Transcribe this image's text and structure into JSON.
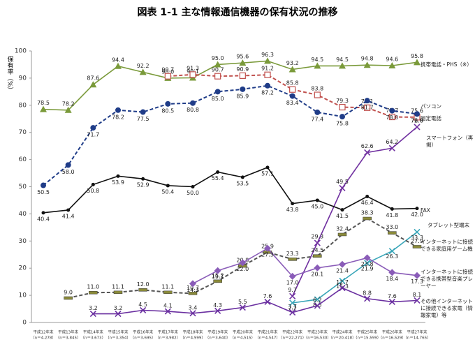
{
  "chart_data": {
    "type": "line",
    "title": "図表 1-1 主な情報通信機器の保有状況の推移",
    "y_label": "保有率（%）",
    "categories": [
      "平成12年末",
      "平成13年末",
      "平成14年末",
      "平成15年末",
      "平成16年末",
      "平成17年末",
      "平成18年末",
      "平成19年末",
      "平成20年末",
      "平成21年末",
      "平成22年末",
      "平成23年末",
      "平成24年末",
      "平成25年末",
      "平成26年末",
      "平成27年末"
    ],
    "sample_sizes": [
      "（n＝4,278）",
      "（n＝3,845）",
      "（n＝3,673）",
      "（n＝3,354）",
      "（n＝3,695）",
      "（n＝3,982）",
      "（n＝4,999）",
      "（n＝3,640）",
      "（n＝4,515）",
      "（n＝4,547）",
      "（n＝22,271）",
      "（n＝16,530）",
      "（n＝20,418）",
      "（n＝15,599）",
      "（n＝16,529）",
      "（n＝14,765）"
    ],
    "ylim": [
      0,
      100
    ],
    "yticks": [
      0,
      10,
      20,
      30,
      40,
      50,
      60,
      70,
      80,
      90,
      100
    ],
    "series": [
      {
        "name": "携帯電話・PHS（※）",
        "color": "#7a9a3a",
        "marker": "triangle",
        "dashed": false,
        "values": [
          78.5,
          78.2,
          87.6,
          94.4,
          92.2,
          90.0,
          90.1,
          95.0,
          95.6,
          96.3,
          93.2,
          94.5,
          94.5,
          94.8,
          94.6,
          95.8
        ],
        "value_labels": [
          "78.5",
          "78.2",
          "87.6",
          "94.4",
          "92.2",
          "90.0",
          "90.1",
          "95.0",
          "95.6",
          "96.3",
          "93.2",
          "94.5",
          "94.5",
          "94.8",
          "94.6",
          "95.8"
        ]
      },
      {
        "name": "固定電話",
        "color": "#c0504d",
        "marker": "square",
        "dashed": true,
        "values": [
          null,
          null,
          null,
          null,
          null,
          90.7,
          91.3,
          90.7,
          90.9,
          91.2,
          85.8,
          83.8,
          79.3,
          79.1,
          75.7,
          75.6
        ],
        "value_labels": [
          null,
          null,
          null,
          null,
          null,
          "90.7",
          "91.3",
          "90.7",
          "90.9",
          "91.2",
          "85.8",
          "83.8",
          "79.3",
          "79.1",
          "75.7",
          "75.6"
        ]
      },
      {
        "name": "パソコン",
        "color": "#1f3c88",
        "marker": "circle",
        "dashed": true,
        "values": [
          50.5,
          58.0,
          71.7,
          78.2,
          77.5,
          80.5,
          80.8,
          85.0,
          85.9,
          87.2,
          83.4,
          77.4,
          75.8,
          81.7,
          78.0,
          76.8
        ],
        "value_labels": [
          "50.5",
          "58.0",
          "71.7",
          "78.2",
          "77.5",
          "80.5",
          "80.8",
          "85.0",
          "85.9",
          "87.2",
          "83.4",
          "77.4",
          "75.8",
          "81.7",
          "78.0",
          "76.8"
        ]
      },
      {
        "name": "スマートフォン（再掲）",
        "color": "#7030a0",
        "marker": "cross",
        "dashed": false,
        "values": [
          null,
          null,
          null,
          null,
          null,
          null,
          null,
          null,
          null,
          null,
          9.7,
          29.3,
          49.5,
          62.6,
          64.2,
          72.0
        ],
        "value_labels": [
          null,
          null,
          null,
          null,
          null,
          null,
          null,
          null,
          null,
          null,
          "9.7",
          "29.3",
          "49.5",
          "62.6",
          "64.2",
          "72.0"
        ]
      },
      {
        "name": "FAX",
        "color": "#111111",
        "marker": "dot",
        "dashed": false,
        "values": [
          40.4,
          41.4,
          50.8,
          53.9,
          52.9,
          50.4,
          50.0,
          55.4,
          53.5,
          57.1,
          43.8,
          45.0,
          41.5,
          46.4,
          41.8,
          42.0
        ],
        "value_labels": [
          "40.4",
          "41.4",
          "50.8",
          "53.9",
          "52.9",
          "50.4",
          "50.0",
          "55.4",
          "53.5",
          "57.1",
          "43.8",
          "45.0",
          "41.5",
          "46.4",
          "41.8",
          "42.0"
        ]
      },
      {
        "name": "タブレット型端末",
        "color": "#3aa6b9",
        "marker": "cross",
        "dashed": false,
        "values": [
          null,
          null,
          null,
          null,
          null,
          null,
          null,
          null,
          null,
          null,
          7.2,
          8.5,
          15.3,
          21.9,
          26.3,
          33.3
        ],
        "value_labels": [
          null,
          null,
          null,
          null,
          null,
          null,
          null,
          null,
          null,
          null,
          "7.2",
          "8.5",
          "15.3",
          "21.9",
          "26.3",
          "33.3"
        ]
      },
      {
        "name": "インターネットに接続できる家庭用ゲーム機",
        "color": "#555555",
        "marker": "bar",
        "dashed": true,
        "values": [
          null,
          9.0,
          11.0,
          11.1,
          12.0,
          11.1,
          10.7,
          15.2,
          20.8,
          25.9,
          23.3,
          24.5,
          32.4,
          38.3,
          33.0,
          27.9
        ],
        "value_labels": [
          null,
          "9.0",
          "11.0",
          "11.1",
          "12.0",
          "11.1",
          "10.7",
          "15.2",
          "20.8",
          "25.9",
          "23.3",
          "24.5",
          "32.4",
          "38.3",
          "33.0",
          "27.9"
        ]
      },
      {
        "name": "インターネットに接続できる携帯型音楽プレーヤー",
        "color": "#8a5cb8",
        "marker": "diamond",
        "dashed": false,
        "values": [
          null,
          null,
          null,
          null,
          null,
          null,
          14.3,
          19.1,
          22.0,
          27.3,
          17.0,
          20.1,
          21.4,
          23.8,
          18.4,
          17.3
        ],
        "value_labels": [
          null,
          null,
          null,
          null,
          null,
          null,
          "14.3",
          "19.1",
          "22.0",
          "27.3",
          "17.0",
          "20.1",
          "21.4",
          "23.8",
          "18.4",
          "17.3"
        ]
      },
      {
        "name": "その他インターネットに接続できる家電（情報家電）等",
        "color": "#6a2fa0",
        "marker": "cross",
        "dashed": false,
        "values": [
          null,
          null,
          3.2,
          3.2,
          4.5,
          4.1,
          3.4,
          4.3,
          5.5,
          7.6,
          3.7,
          6.2,
          12.7,
          8.8,
          7.6,
          8.1
        ],
        "value_labels": [
          null,
          null,
          "3.2",
          "3.2",
          "4.5",
          "4.1",
          "3.4",
          "4.3",
          "5.5",
          "7.6",
          "3.7",
          "6.2",
          "12.7",
          "8.8",
          "7.6",
          "8.1"
        ]
      }
    ]
  }
}
